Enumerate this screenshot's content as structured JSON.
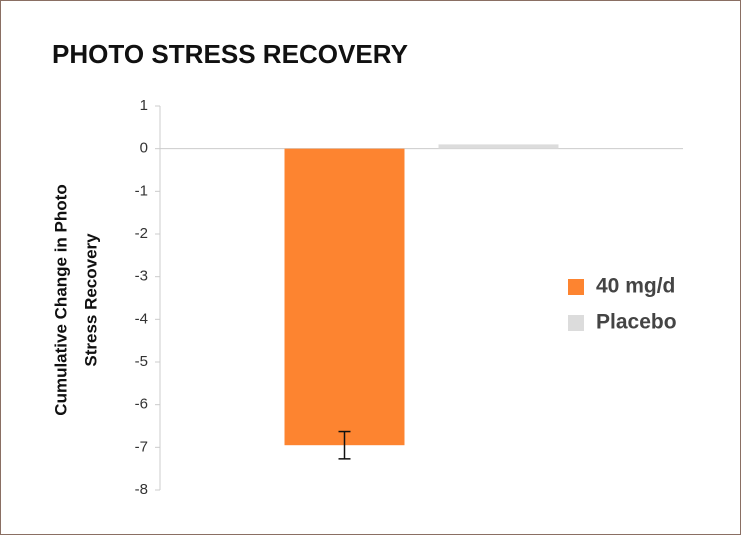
{
  "chart_data": {
    "type": "bar",
    "title": "PHOTO STRESS RECOVERY",
    "ylabel": [
      "Cumulative Change in Photo",
      "Stress Recovery"
    ],
    "categories": [
      null
    ],
    "series": [
      {
        "name": "40 mg/d",
        "color": "#fd8430",
        "values": [
          -6.95
        ],
        "errors": [
          0.32
        ]
      },
      {
        "name": "Placebo",
        "color": "#dcdcdc",
        "values": [
          0.1
        ]
      }
    ],
    "ylim": [
      -8,
      1
    ],
    "yticks": [
      1,
      0,
      -1,
      -2,
      -3,
      -4,
      -5,
      -6,
      -7,
      -8
    ],
    "legend": "right"
  }
}
